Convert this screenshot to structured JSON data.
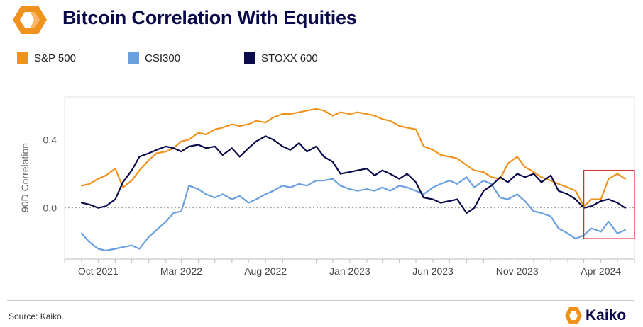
{
  "header": {
    "title": "Bitcoin Correlation With Equities",
    "logo_icon": "kaiko-hexagon-logo-icon"
  },
  "footer": {
    "source": "Source: Kaiko.",
    "brand_name": "Kaiko",
    "brand_icon": "kaiko-logo-icon"
  },
  "colors": {
    "sp500": "#F0931E",
    "csi300": "#6A9FE0",
    "stoxx600": "#0B0B4B",
    "brand_orange": "#F0931E",
    "title": "#0A0A4A",
    "highlight_box": "#D62A2A"
  },
  "chart_data": {
    "type": "line",
    "title": "Bitcoin Correlation With Equities",
    "ylabel": "90D Correlation",
    "xlabel": "",
    "ylim": [
      -0.3,
      0.65
    ],
    "xlim": [
      "2021-08-01",
      "2024-06-01"
    ],
    "y_ticks": [
      0.0,
      0.4
    ],
    "y_tick_labels": [
      "0.0",
      "0.4"
    ],
    "x_tick_dates": [
      "2021-10-01",
      "2022-03-01",
      "2022-08-01",
      "2023-01-01",
      "2023-06-01",
      "2023-11-01",
      "2024-04-01"
    ],
    "x_tick_labels": [
      "Oct 2021",
      "Mar 2022",
      "Aug 2022",
      "Jan 2023",
      "Jun 2023",
      "Nov 2023",
      "Apr 2024"
    ],
    "grid": false,
    "zero_line": "dotted",
    "legend_position": "top-left",
    "highlight_box": {
      "x": [
        "2024-03-01",
        "2024-06-01"
      ],
      "y": [
        -0.18,
        0.22
      ]
    },
    "series": [
      {
        "name": "S&P 500",
        "color": "#F0931E",
        "x": [
          "2021-09-01",
          "2021-09-15",
          "2021-10-01",
          "2021-10-15",
          "2021-11-01",
          "2021-11-15",
          "2021-12-01",
          "2021-12-15",
          "2022-01-01",
          "2022-01-15",
          "2022-02-01",
          "2022-02-15",
          "2022-03-01",
          "2022-03-15",
          "2022-04-01",
          "2022-04-15",
          "2022-05-01",
          "2022-05-15",
          "2022-06-01",
          "2022-06-15",
          "2022-07-01",
          "2022-07-15",
          "2022-08-01",
          "2022-08-15",
          "2022-09-01",
          "2022-09-15",
          "2022-10-01",
          "2022-10-15",
          "2022-11-01",
          "2022-11-15",
          "2022-12-01",
          "2022-12-15",
          "2023-01-01",
          "2023-01-15",
          "2023-02-01",
          "2023-02-15",
          "2023-03-01",
          "2023-03-15",
          "2023-04-01",
          "2023-04-15",
          "2023-05-01",
          "2023-05-15",
          "2023-06-01",
          "2023-06-15",
          "2023-07-01",
          "2023-07-15",
          "2023-08-01",
          "2023-08-15",
          "2023-09-01",
          "2023-09-15",
          "2023-10-01",
          "2023-10-15",
          "2023-11-01",
          "2023-11-15",
          "2023-12-01",
          "2023-12-15",
          "2024-01-01",
          "2024-01-15",
          "2024-02-01",
          "2024-02-15",
          "2024-03-01",
          "2024-03-15",
          "2024-04-01",
          "2024-04-15",
          "2024-05-01",
          "2024-05-15"
        ],
        "values": [
          0.13,
          0.14,
          0.17,
          0.19,
          0.23,
          0.12,
          0.16,
          0.22,
          0.28,
          0.32,
          0.33,
          0.35,
          0.39,
          0.4,
          0.44,
          0.43,
          0.46,
          0.47,
          0.49,
          0.48,
          0.49,
          0.51,
          0.5,
          0.53,
          0.55,
          0.55,
          0.56,
          0.57,
          0.58,
          0.57,
          0.54,
          0.56,
          0.55,
          0.56,
          0.55,
          0.54,
          0.52,
          0.51,
          0.48,
          0.47,
          0.46,
          0.36,
          0.34,
          0.31,
          0.3,
          0.29,
          0.25,
          0.22,
          0.21,
          0.18,
          0.17,
          0.26,
          0.3,
          0.24,
          0.21,
          0.18,
          0.16,
          0.14,
          0.12,
          0.1,
          0.01,
          0.05,
          0.05,
          0.17,
          0.2,
          0.17
        ]
      },
      {
        "name": "CSI300",
        "color": "#6A9FE0",
        "x": [
          "2021-09-01",
          "2021-09-15",
          "2021-10-01",
          "2021-10-15",
          "2021-11-01",
          "2021-11-15",
          "2021-12-01",
          "2021-12-15",
          "2022-01-01",
          "2022-01-15",
          "2022-02-01",
          "2022-02-15",
          "2022-03-01",
          "2022-03-15",
          "2022-04-01",
          "2022-04-15",
          "2022-05-01",
          "2022-05-15",
          "2022-06-01",
          "2022-06-15",
          "2022-07-01",
          "2022-07-15",
          "2022-08-01",
          "2022-08-15",
          "2022-09-01",
          "2022-09-15",
          "2022-10-01",
          "2022-10-15",
          "2022-11-01",
          "2022-11-15",
          "2022-12-01",
          "2022-12-15",
          "2023-01-01",
          "2023-01-15",
          "2023-02-01",
          "2023-02-15",
          "2023-03-01",
          "2023-03-15",
          "2023-04-01",
          "2023-04-15",
          "2023-05-01",
          "2023-05-15",
          "2023-06-01",
          "2023-06-15",
          "2023-07-01",
          "2023-07-15",
          "2023-08-01",
          "2023-08-15",
          "2023-09-01",
          "2023-09-15",
          "2023-10-01",
          "2023-10-15",
          "2023-11-01",
          "2023-11-15",
          "2023-12-01",
          "2023-12-15",
          "2024-01-01",
          "2024-01-15",
          "2024-02-01",
          "2024-02-15",
          "2024-03-01",
          "2024-03-15",
          "2024-04-01",
          "2024-04-15",
          "2024-05-01",
          "2024-05-15"
        ],
        "values": [
          -0.15,
          -0.2,
          -0.24,
          -0.25,
          -0.24,
          -0.23,
          -0.22,
          -0.24,
          -0.17,
          -0.13,
          -0.08,
          -0.03,
          -0.02,
          0.13,
          0.11,
          0.08,
          0.06,
          0.08,
          0.05,
          0.07,
          0.03,
          0.05,
          0.08,
          0.1,
          0.13,
          0.12,
          0.14,
          0.13,
          0.16,
          0.16,
          0.17,
          0.13,
          0.11,
          0.1,
          0.11,
          0.1,
          0.12,
          0.1,
          0.13,
          0.12,
          0.1,
          0.08,
          0.12,
          0.14,
          0.16,
          0.14,
          0.18,
          0.12,
          0.16,
          0.14,
          0.06,
          0.05,
          0.08,
          0.04,
          -0.02,
          -0.03,
          -0.05,
          -0.12,
          -0.15,
          -0.18,
          -0.16,
          -0.12,
          -0.14,
          -0.08,
          -0.15,
          -0.13
        ]
      },
      {
        "name": "STOXX 600",
        "color": "#0B0B4B",
        "x": [
          "2021-09-01",
          "2021-09-15",
          "2021-10-01",
          "2021-10-15",
          "2021-11-01",
          "2021-11-15",
          "2021-12-01",
          "2021-12-15",
          "2022-01-01",
          "2022-01-15",
          "2022-02-01",
          "2022-02-15",
          "2022-03-01",
          "2022-03-15",
          "2022-04-01",
          "2022-04-15",
          "2022-05-01",
          "2022-05-15",
          "2022-06-01",
          "2022-06-15",
          "2022-07-01",
          "2022-07-15",
          "2022-08-01",
          "2022-08-15",
          "2022-09-01",
          "2022-09-15",
          "2022-10-01",
          "2022-10-15",
          "2022-11-01",
          "2022-11-15",
          "2022-12-01",
          "2022-12-15",
          "2023-01-01",
          "2023-01-15",
          "2023-02-01",
          "2023-02-15",
          "2023-03-01",
          "2023-03-15",
          "2023-04-01",
          "2023-04-15",
          "2023-05-01",
          "2023-05-15",
          "2023-06-01",
          "2023-06-15",
          "2023-07-01",
          "2023-07-15",
          "2023-08-01",
          "2023-08-15",
          "2023-09-01",
          "2023-09-15",
          "2023-10-01",
          "2023-10-15",
          "2023-11-01",
          "2023-11-15",
          "2023-12-01",
          "2023-12-15",
          "2024-01-01",
          "2024-01-15",
          "2024-02-01",
          "2024-02-15",
          "2024-03-01",
          "2024-03-15",
          "2024-04-01",
          "2024-04-15",
          "2024-05-01",
          "2024-05-15"
        ],
        "values": [
          0.03,
          0.02,
          0.0,
          0.01,
          0.05,
          0.15,
          0.22,
          0.3,
          0.32,
          0.34,
          0.36,
          0.35,
          0.33,
          0.36,
          0.37,
          0.35,
          0.36,
          0.31,
          0.35,
          0.3,
          0.35,
          0.39,
          0.42,
          0.4,
          0.36,
          0.34,
          0.38,
          0.33,
          0.36,
          0.3,
          0.27,
          0.2,
          0.21,
          0.22,
          0.23,
          0.19,
          0.22,
          0.2,
          0.17,
          0.2,
          0.15,
          0.06,
          0.05,
          0.03,
          0.04,
          0.05,
          -0.03,
          0.0,
          0.1,
          0.13,
          0.18,
          0.15,
          0.2,
          0.18,
          0.2,
          0.15,
          0.19,
          0.1,
          0.08,
          0.05,
          0.0,
          0.01,
          0.04,
          0.05,
          0.03,
          0.0
        ]
      }
    ]
  }
}
